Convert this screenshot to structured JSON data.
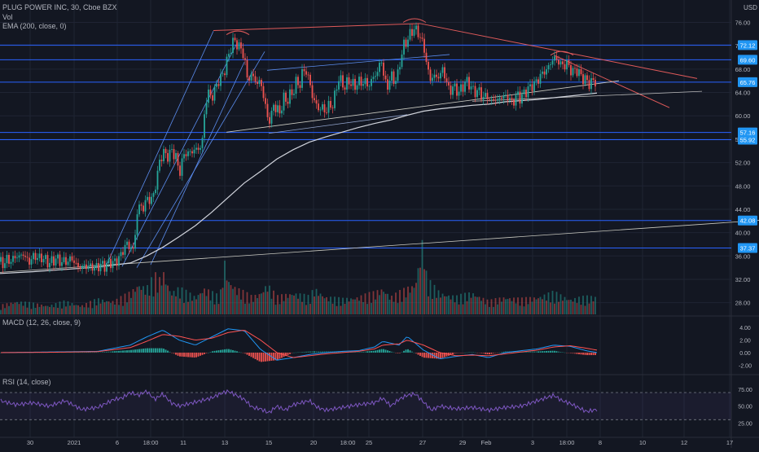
{
  "header": {
    "title": "PLUG POWER INC, 30, Cboe BZX",
    "vol_label": "Vol",
    "ema_label": "EMA (200, close, 0)",
    "currency": "USD"
  },
  "macd_panel": {
    "label": "MACD (12, 26, close, 9)"
  },
  "rsi_panel": {
    "label": "RSI (14, close)"
  },
  "price_axis": {
    "ticks": [
      "76.00",
      "72.00",
      "68.00",
      "64.00",
      "60.00",
      "56.00",
      "52.00",
      "48.00",
      "44.00",
      "40.00",
      "36.00",
      "32.00",
      "28.00"
    ],
    "badges": [
      {
        "value": "72.12",
        "y": 72.12
      },
      {
        "value": "69.60",
        "y": 69.6
      },
      {
        "value": "65.76",
        "y": 65.76
      },
      {
        "value": "57.16",
        "y": 57.16
      },
      {
        "value": "55.92",
        "y": 55.92
      },
      {
        "value": "42.08",
        "y": 42.08
      },
      {
        "value": "37.37",
        "y": 37.37
      }
    ]
  },
  "macd_axis": {
    "ticks": [
      "4.00",
      "2.00",
      "0.00",
      "-2.00"
    ]
  },
  "rsi_axis": {
    "ticks": [
      "75.00",
      "50.00",
      "25.00"
    ]
  },
  "time_axis": {
    "ticks": [
      "30",
      "2021",
      "6",
      "18:00",
      "11",
      "13",
      "15",
      "20",
      "18:00",
      "25",
      "27",
      "29",
      "Feb",
      "3",
      "18:00",
      "8",
      "10",
      "12",
      "17"
    ]
  },
  "colors": {
    "background": "#131722",
    "grid": "#1f2433",
    "up": "#26a69a",
    "down": "#ef5350",
    "horizontal_level": "#2962ff",
    "badge": "#2196f3",
    "ema": "#d1d4dc",
    "channel": "#5b8def",
    "resistance": "#e05a5a",
    "macd": "#2196f3",
    "signal": "#ff5252",
    "rsi": "#7e57c2"
  },
  "chart_data": {
    "type": "candlestick",
    "title": "PLUG POWER INC, 30, Cboe BZX",
    "ylim": [
      26,
      79
    ],
    "price_path": [
      [
        0,
        35
      ],
      [
        4,
        34.5
      ],
      [
        8,
        35.5
      ],
      [
        12,
        35
      ],
      [
        16,
        35.5
      ],
      [
        20,
        36
      ],
      [
        24,
        35.8
      ],
      [
        28,
        36.5
      ],
      [
        32,
        35.5
      ],
      [
        36,
        35
      ],
      [
        40,
        35.8
      ],
      [
        44,
        36
      ],
      [
        48,
        35.5
      ],
      [
        52,
        35.8
      ],
      [
        56,
        35.2
      ],
      [
        60,
        34.8
      ],
      [
        64,
        35
      ],
      [
        68,
        35.6
      ],
      [
        72,
        35.3
      ],
      [
        76,
        34.9
      ],
      [
        80,
        35.2
      ],
      [
        84,
        35
      ],
      [
        88,
        35.8
      ],
      [
        92,
        34.6
      ],
      [
        96,
        34.2
      ],
      [
        100,
        34
      ],
      [
        104,
        34.4
      ],
      [
        108,
        34.1
      ],
      [
        112,
        34.3
      ],
      [
        116,
        34
      ],
      [
        120,
        34.2
      ],
      [
        124,
        34.5
      ],
      [
        128,
        34.3
      ],
      [
        132,
        34.6
      ],
      [
        136,
        35
      ],
      [
        140,
        34.7
      ],
      [
        144,
        35.4
      ],
      [
        148,
        35.9
      ],
      [
        152,
        37.4
      ],
      [
        156,
        38
      ],
      [
        160,
        37.6
      ],
      [
        164,
        36.8
      ],
      [
        168,
        43
      ],
      [
        172,
        45
      ],
      [
        176,
        44
      ],
      [
        180,
        46
      ],
      [
        184,
        45.5
      ],
      [
        188,
        46
      ],
      [
        192,
        49
      ],
      [
        196,
        52
      ],
      [
        200,
        54
      ],
      [
        204,
        53
      ],
      [
        208,
        53.5
      ],
      [
        212,
        54
      ],
      [
        216,
        53
      ],
      [
        220,
        50
      ],
      [
        224,
        52.5
      ],
      [
        228,
        53.8
      ],
      [
        232,
        53.5
      ],
      [
        236,
        54
      ],
      [
        240,
        54.2
      ],
      [
        244,
        54.4
      ],
      [
        248,
        55
      ],
      [
        252,
        62
      ],
      [
        256,
        64
      ],
      [
        260,
        63
      ],
      [
        264,
        64.5
      ],
      [
        268,
        66
      ],
      [
        272,
        66.5
      ],
      [
        276,
        68
      ],
      [
        280,
        70
      ],
      [
        284,
        72
      ],
      [
        288,
        73
      ],
      [
        292,
        72
      ],
      [
        296,
        71.5
      ],
      [
        300,
        70
      ],
      [
        304,
        66
      ],
      [
        308,
        67
      ],
      [
        312,
        66.5
      ],
      [
        316,
        65.5
      ],
      [
        320,
        66
      ],
      [
        324,
        63
      ],
      [
        328,
        60
      ],
      [
        332,
        59
      ],
      [
        336,
        62
      ],
      [
        340,
        61
      ],
      [
        344,
        60.5
      ],
      [
        348,
        63
      ],
      [
        352,
        62.5
      ],
      [
        356,
        63.5
      ],
      [
        360,
        64
      ],
      [
        364,
        66
      ],
      [
        368,
        65
      ],
      [
        372,
        68
      ],
      [
        376,
        67.5
      ],
      [
        380,
        66
      ],
      [
        384,
        63
      ],
      [
        388,
        62
      ],
      [
        392,
        61
      ],
      [
        396,
        61.5
      ],
      [
        400,
        60.5
      ],
      [
        404,
        62
      ],
      [
        408,
        61.5
      ],
      [
        412,
        64
      ],
      [
        416,
        66.5
      ],
      [
        420,
        65.5
      ],
      [
        424,
        65
      ],
      [
        428,
        66
      ],
      [
        432,
        65.5
      ],
      [
        436,
        65
      ],
      [
        440,
        66
      ],
      [
        444,
        65.5
      ],
      [
        448,
        66
      ],
      [
        452,
        65
      ],
      [
        456,
        66
      ],
      [
        460,
        67
      ],
      [
        464,
        67.5
      ],
      [
        468,
        70
      ],
      [
        472,
        66
      ],
      [
        476,
        65
      ],
      [
        480,
        67
      ],
      [
        484,
        66
      ],
      [
        488,
        66.5
      ],
      [
        492,
        70
      ],
      [
        496,
        72
      ],
      [
        500,
        73
      ],
      [
        504,
        74
      ],
      [
        508,
        75
      ],
      [
        512,
        74.5
      ],
      [
        516,
        73.5
      ],
      [
        520,
        72
      ],
      [
        524,
        69
      ],
      [
        528,
        66
      ],
      [
        532,
        67
      ],
      [
        536,
        66.5
      ],
      [
        540,
        67
      ],
      [
        544,
        68
      ],
      [
        548,
        66
      ],
      [
        552,
        64
      ],
      [
        556,
        65
      ],
      [
        560,
        64.5
      ],
      [
        564,
        64
      ],
      [
        568,
        65
      ],
      [
        572,
        66
      ],
      [
        576,
        65.5
      ],
      [
        580,
        64.5
      ],
      [
        584,
        64
      ],
      [
        588,
        64.5
      ],
      [
        592,
        63
      ],
      [
        596,
        63.5
      ],
      [
        600,
        63
      ],
      [
        604,
        62.5
      ],
      [
        608,
        63
      ],
      [
        612,
        62.5
      ],
      [
        616,
        63.5
      ],
      [
        620,
        63
      ],
      [
        624,
        63.5
      ],
      [
        628,
        62
      ],
      [
        632,
        63
      ],
      [
        636,
        63.5
      ],
      [
        640,
        63
      ],
      [
        644,
        64
      ],
      [
        648,
        64.5
      ],
      [
        652,
        65
      ],
      [
        656,
        65.5
      ],
      [
        660,
        66
      ],
      [
        664,
        67
      ],
      [
        668,
        67.5
      ],
      [
        672,
        68
      ],
      [
        676,
        69
      ],
      [
        680,
        70
      ],
      [
        684,
        69.5
      ],
      [
        688,
        69
      ],
      [
        692,
        68.5
      ],
      [
        696,
        69
      ],
      [
        700,
        68
      ],
      [
        704,
        67.5
      ],
      [
        708,
        68
      ],
      [
        712,
        67
      ],
      [
        716,
        66.5
      ],
      [
        720,
        66
      ],
      [
        724,
        65.5
      ],
      [
        728,
        66
      ],
      [
        732,
        65.76
      ]
    ],
    "ema200": [
      [
        0,
        33
      ],
      [
        40,
        33.3
      ],
      [
        80,
        33.7
      ],
      [
        120,
        34.1
      ],
      [
        160,
        34.8
      ],
      [
        180,
        36
      ],
      [
        200,
        37.5
      ],
      [
        220,
        39.3
      ],
      [
        240,
        41.2
      ],
      [
        260,
        43.5
      ],
      [
        280,
        46
      ],
      [
        300,
        48.5
      ],
      [
        320,
        50.5
      ],
      [
        340,
        52.6
      ],
      [
        360,
        54.2
      ],
      [
        380,
        55.5
      ],
      [
        400,
        56.4
      ],
      [
        420,
        57.2
      ],
      [
        440,
        58
      ],
      [
        460,
        58.7
      ],
      [
        480,
        59.3
      ],
      [
        500,
        60.1
      ],
      [
        520,
        60.8
      ],
      [
        540,
        61.2
      ],
      [
        560,
        61.5
      ],
      [
        580,
        61.8
      ],
      [
        600,
        62
      ],
      [
        620,
        62.4
      ],
      [
        640,
        62.6
      ],
      [
        660,
        62.8
      ],
      [
        680,
        63.1
      ],
      [
        700,
        63.4
      ],
      [
        720,
        63.7
      ],
      [
        733,
        63.9
      ]
    ],
    "volume_path": [
      [
        0,
        2
      ],
      [
        20,
        3
      ],
      [
        40,
        2.5
      ],
      [
        60,
        2
      ],
      [
        80,
        3
      ],
      [
        100,
        2
      ],
      [
        120,
        3.5
      ],
      [
        140,
        3
      ],
      [
        150,
        4
      ],
      [
        160,
        5
      ],
      [
        170,
        7
      ],
      [
        180,
        6
      ],
      [
        190,
        9
      ],
      [
        196,
        8
      ],
      [
        200,
        10
      ],
      [
        210,
        5
      ],
      [
        220,
        6
      ],
      [
        230,
        5
      ],
      [
        240,
        4
      ],
      [
        250,
        6
      ],
      [
        260,
        5
      ],
      [
        270,
        4
      ],
      [
        276,
        12
      ],
      [
        280,
        8
      ],
      [
        290,
        6
      ],
      [
        300,
        5
      ],
      [
        310,
        4
      ],
      [
        320,
        5
      ],
      [
        328,
        7
      ],
      [
        340,
        4
      ],
      [
        360,
        5
      ],
      [
        380,
        4
      ],
      [
        386,
        6
      ],
      [
        400,
        4
      ],
      [
        420,
        3.5
      ],
      [
        440,
        4
      ],
      [
        460,
        5
      ],
      [
        470,
        6
      ],
      [
        480,
        4
      ],
      [
        500,
        6
      ],
      [
        510,
        7
      ],
      [
        520,
        18
      ],
      [
        524,
        8
      ],
      [
        540,
        5
      ],
      [
        560,
        4
      ],
      [
        580,
        5
      ],
      [
        600,
        3
      ],
      [
        620,
        4
      ],
      [
        640,
        3.5
      ],
      [
        660,
        4
      ],
      [
        680,
        5
      ],
      [
        700,
        3.5
      ],
      [
        720,
        4
      ],
      [
        733,
        4
      ]
    ],
    "macd_path": [
      [
        0,
        0
      ],
      [
        60,
        0.1
      ],
      [
        120,
        0.2
      ],
      [
        160,
        1.2
      ],
      [
        180,
        2.5
      ],
      [
        200,
        3.6
      ],
      [
        220,
        2
      ],
      [
        240,
        1.2
      ],
      [
        260,
        2.5
      ],
      [
        280,
        3.8
      ],
      [
        300,
        3.5
      ],
      [
        320,
        0.5
      ],
      [
        340,
        -1.2
      ],
      [
        360,
        -0.8
      ],
      [
        380,
        -0.3
      ],
      [
        400,
        0
      ],
      [
        420,
        0.2
      ],
      [
        440,
        0.3
      ],
      [
        460,
        0.9
      ],
      [
        470,
        1.8
      ],
      [
        490,
        1.2
      ],
      [
        500,
        2.6
      ],
      [
        520,
        0.4
      ],
      [
        540,
        -1
      ],
      [
        560,
        -0.6
      ],
      [
        580,
        -0.3
      ],
      [
        600,
        -0.8
      ],
      [
        620,
        0
      ],
      [
        640,
        0.3
      ],
      [
        660,
        0.6
      ],
      [
        680,
        1.2
      ],
      [
        700,
        1
      ],
      [
        720,
        0.3
      ],
      [
        733,
        0
      ]
    ],
    "signal_path": [
      [
        0,
        0
      ],
      [
        60,
        0.05
      ],
      [
        120,
        0.15
      ],
      [
        160,
        0.8
      ],
      [
        180,
        1.8
      ],
      [
        200,
        2.9
      ],
      [
        220,
        2.6
      ],
      [
        240,
        2
      ],
      [
        260,
        2.3
      ],
      [
        280,
        3.2
      ],
      [
        300,
        3.6
      ],
      [
        320,
        2
      ],
      [
        340,
        0
      ],
      [
        360,
        -0.8
      ],
      [
        380,
        -0.5
      ],
      [
        400,
        -0.2
      ],
      [
        420,
        0
      ],
      [
        440,
        0.2
      ],
      [
        460,
        0.6
      ],
      [
        470,
        1.2
      ],
      [
        490,
        1.4
      ],
      [
        500,
        2
      ],
      [
        520,
        1.2
      ],
      [
        540,
        0
      ],
      [
        560,
        -0.5
      ],
      [
        580,
        -0.4
      ],
      [
        600,
        -0.5
      ],
      [
        620,
        -0.2
      ],
      [
        640,
        0.1
      ],
      [
        660,
        0.4
      ],
      [
        680,
        0.9
      ],
      [
        700,
        1.1
      ],
      [
        720,
        0.7
      ],
      [
        733,
        0.4
      ]
    ],
    "rsi_path": [
      [
        0,
        58
      ],
      [
        20,
        52
      ],
      [
        40,
        55
      ],
      [
        60,
        50
      ],
      [
        80,
        58
      ],
      [
        100,
        45
      ],
      [
        120,
        48
      ],
      [
        140,
        60
      ],
      [
        150,
        62
      ],
      [
        160,
        70
      ],
      [
        170,
        66
      ],
      [
        180,
        72
      ],
      [
        190,
        60
      ],
      [
        200,
        68
      ],
      [
        210,
        55
      ],
      [
        220,
        50
      ],
      [
        240,
        56
      ],
      [
        260,
        62
      ],
      [
        270,
        68
      ],
      [
        280,
        72
      ],
      [
        290,
        66
      ],
      [
        300,
        60
      ],
      [
        310,
        48
      ],
      [
        320,
        46
      ],
      [
        330,
        40
      ],
      [
        340,
        50
      ],
      [
        350,
        44
      ],
      [
        360,
        52
      ],
      [
        370,
        55
      ],
      [
        380,
        58
      ],
      [
        390,
        48
      ],
      [
        400,
        44
      ],
      [
        420,
        48
      ],
      [
        440,
        52
      ],
      [
        460,
        55
      ],
      [
        470,
        62
      ],
      [
        480,
        50
      ],
      [
        490,
        60
      ],
      [
        500,
        66
      ],
      [
        510,
        68
      ],
      [
        520,
        56
      ],
      [
        530,
        44
      ],
      [
        540,
        50
      ],
      [
        560,
        46
      ],
      [
        580,
        48
      ],
      [
        600,
        44
      ],
      [
        620,
        48
      ],
      [
        640,
        50
      ],
      [
        660,
        58
      ],
      [
        670,
        62
      ],
      [
        680,
        66
      ],
      [
        690,
        58
      ],
      [
        700,
        54
      ],
      [
        710,
        48
      ],
      [
        720,
        42
      ],
      [
        733,
        45
      ]
    ]
  }
}
